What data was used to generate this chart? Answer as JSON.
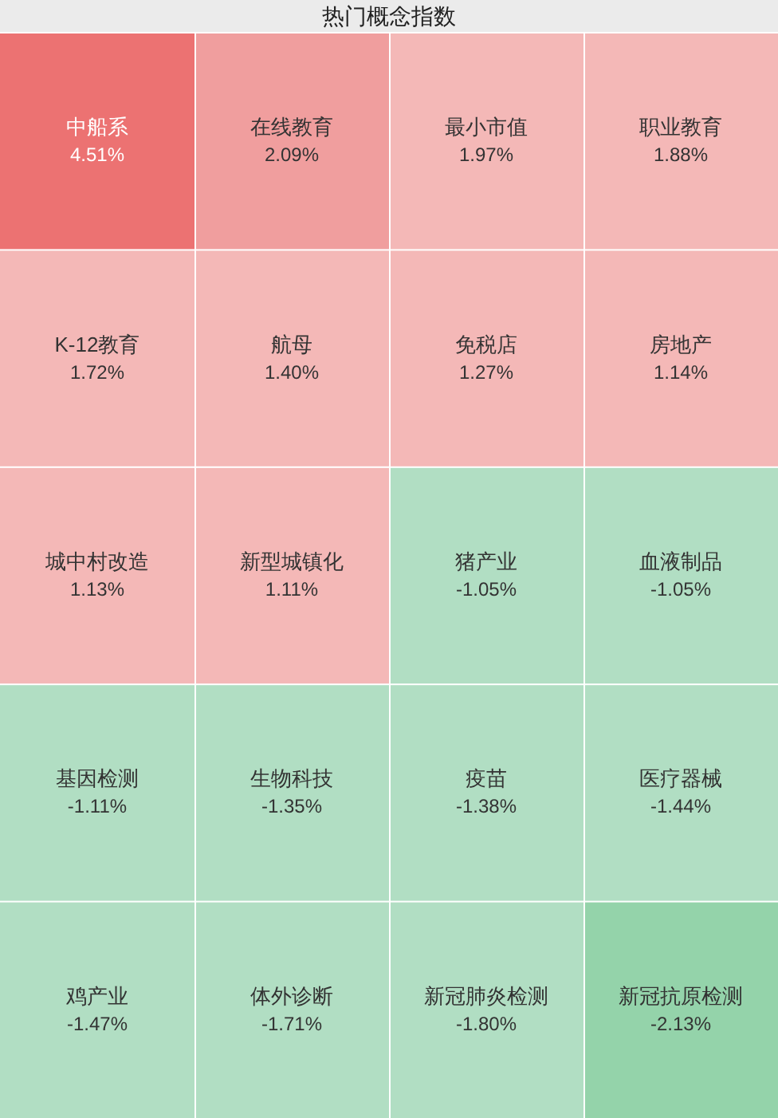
{
  "chart_data": {
    "type": "other",
    "title": "热门概念指数",
    "categories": [
      "中船系",
      "在线教育",
      "最小市值",
      "职业教育",
      "K-12教育",
      "航母",
      "免税店",
      "房地产",
      "城中村改造",
      "新型城镇化",
      "猪产业",
      "血液制品",
      "基因检测",
      "生物科技",
      "疫苗",
      "医疗器械",
      "鸡产业",
      "体外诊断",
      "新冠肺炎检测",
      "新冠抗原检测"
    ],
    "values": [
      4.51,
      2.09,
      1.97,
      1.88,
      1.72,
      1.4,
      1.27,
      1.14,
      1.13,
      1.11,
      -1.05,
      -1.05,
      -1.11,
      -1.35,
      -1.38,
      -1.44,
      -1.47,
      -1.71,
      -1.8,
      -2.13
    ],
    "value_labels": [
      "4.51%",
      "2.09%",
      "1.97%",
      "1.88%",
      "1.72%",
      "1.40%",
      "1.27%",
      "1.14%",
      "1.13%",
      "1.11%",
      "-1.05%",
      "-1.05%",
      "-1.11%",
      "-1.35%",
      "-1.38%",
      "-1.44%",
      "-1.47%",
      "-1.71%",
      "-1.80%",
      "-2.13%"
    ]
  }
}
